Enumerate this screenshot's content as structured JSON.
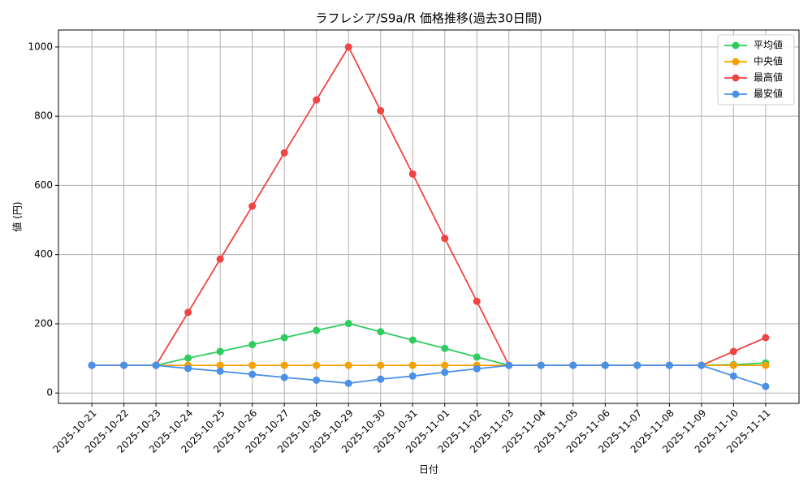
{
  "chart_data": {
    "type": "line",
    "title": "ラフレシア/S9a/R 価格推移(過去30日間)",
    "x_label": "日付",
    "y_label": "値 (円)",
    "categories": [
      "2025-10-21",
      "2025-10-22",
      "2025-10-23",
      "2025-10-24",
      "2025-10-25",
      "2025-10-26",
      "2025-10-27",
      "2025-10-28",
      "2025-10-29",
      "2025-10-30",
      "2025-10-31",
      "2025-11-01",
      "2025-11-02",
      "2025-11-03",
      "2025-11-04",
      "2025-11-05",
      "2025-11-06",
      "2025-11-07",
      "2025-11-08",
      "2025-11-09",
      "2025-11-10",
      "2025-11-11"
    ],
    "series": [
      {
        "name": "平均値",
        "color": "#2ecc5f",
        "values": [
          80,
          80,
          80,
          101,
          120,
          140,
          160,
          181,
          201,
          177,
          153,
          129,
          104,
          80,
          80,
          80,
          80,
          80,
          80,
          80,
          82,
          87
        ]
      },
      {
        "name": "中央値",
        "color": "#f5a000",
        "values": [
          80,
          80,
          80,
          80,
          80,
          80,
          80,
          80,
          80,
          80,
          80,
          80,
          80,
          80,
          80,
          80,
          80,
          80,
          80,
          80,
          80,
          80
        ]
      },
      {
        "name": "最高値",
        "color": "#ef4444",
        "values": [
          80,
          80,
          80,
          233,
          387,
          540,
          694,
          847,
          1000,
          816,
          633,
          447,
          265,
          80,
          80,
          80,
          80,
          80,
          80,
          80,
          120,
          160
        ]
      },
      {
        "name": "最安値",
        "color": "#4a90e8",
        "values": [
          80,
          80,
          80,
          71,
          63,
          54,
          45,
          37,
          28,
          40,
          49,
          60,
          70,
          80,
          80,
          80,
          80,
          80,
          80,
          80,
          49,
          19
        ]
      }
    ],
    "ylim": [
      -30,
      1049
    ],
    "yticks": [
      0,
      200,
      400,
      600,
      800,
      1000
    ],
    "grid": true,
    "legend": "upper right"
  }
}
